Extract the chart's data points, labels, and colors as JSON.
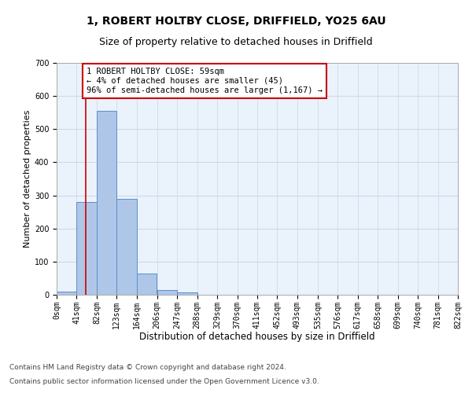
{
  "title1": "1, ROBERT HOLTBY CLOSE, DRIFFIELD, YO25 6AU",
  "title2": "Size of property relative to detached houses in Driffield",
  "xlabel": "Distribution of detached houses by size in Driffield",
  "ylabel": "Number of detached properties",
  "bin_edges": [
    0,
    41,
    82,
    123,
    164,
    206,
    247,
    288,
    329,
    370,
    411,
    452,
    493,
    535,
    576,
    617,
    658,
    699,
    740,
    781,
    822
  ],
  "bar_heights": [
    10,
    280,
    555,
    290,
    65,
    15,
    8,
    0,
    0,
    0,
    0,
    0,
    0,
    0,
    0,
    0,
    0,
    0,
    0,
    0
  ],
  "bar_color": "#aec6e8",
  "bar_edge_color": "#5b8fc9",
  "grid_color": "#c8d8e8",
  "background_color": "#eaf2fb",
  "property_size": 59,
  "annotation_text": "1 ROBERT HOLTBY CLOSE: 59sqm\n← 4% of detached houses are smaller (45)\n96% of semi-detached houses are larger (1,167) →",
  "annotation_box_color": "#ffffff",
  "annotation_box_edge": "#cc0000",
  "vline_color": "#cc0000",
  "ylim": [
    0,
    700
  ],
  "yticks": [
    0,
    100,
    200,
    300,
    400,
    500,
    600,
    700
  ],
  "footer1": "Contains HM Land Registry data © Crown copyright and database right 2024.",
  "footer2": "Contains public sector information licensed under the Open Government Licence v3.0.",
  "title1_fontsize": 10,
  "title2_fontsize": 9,
  "xlabel_fontsize": 8.5,
  "ylabel_fontsize": 8,
  "tick_fontsize": 7,
  "annotation_fontsize": 7.5,
  "footer_fontsize": 6.5
}
